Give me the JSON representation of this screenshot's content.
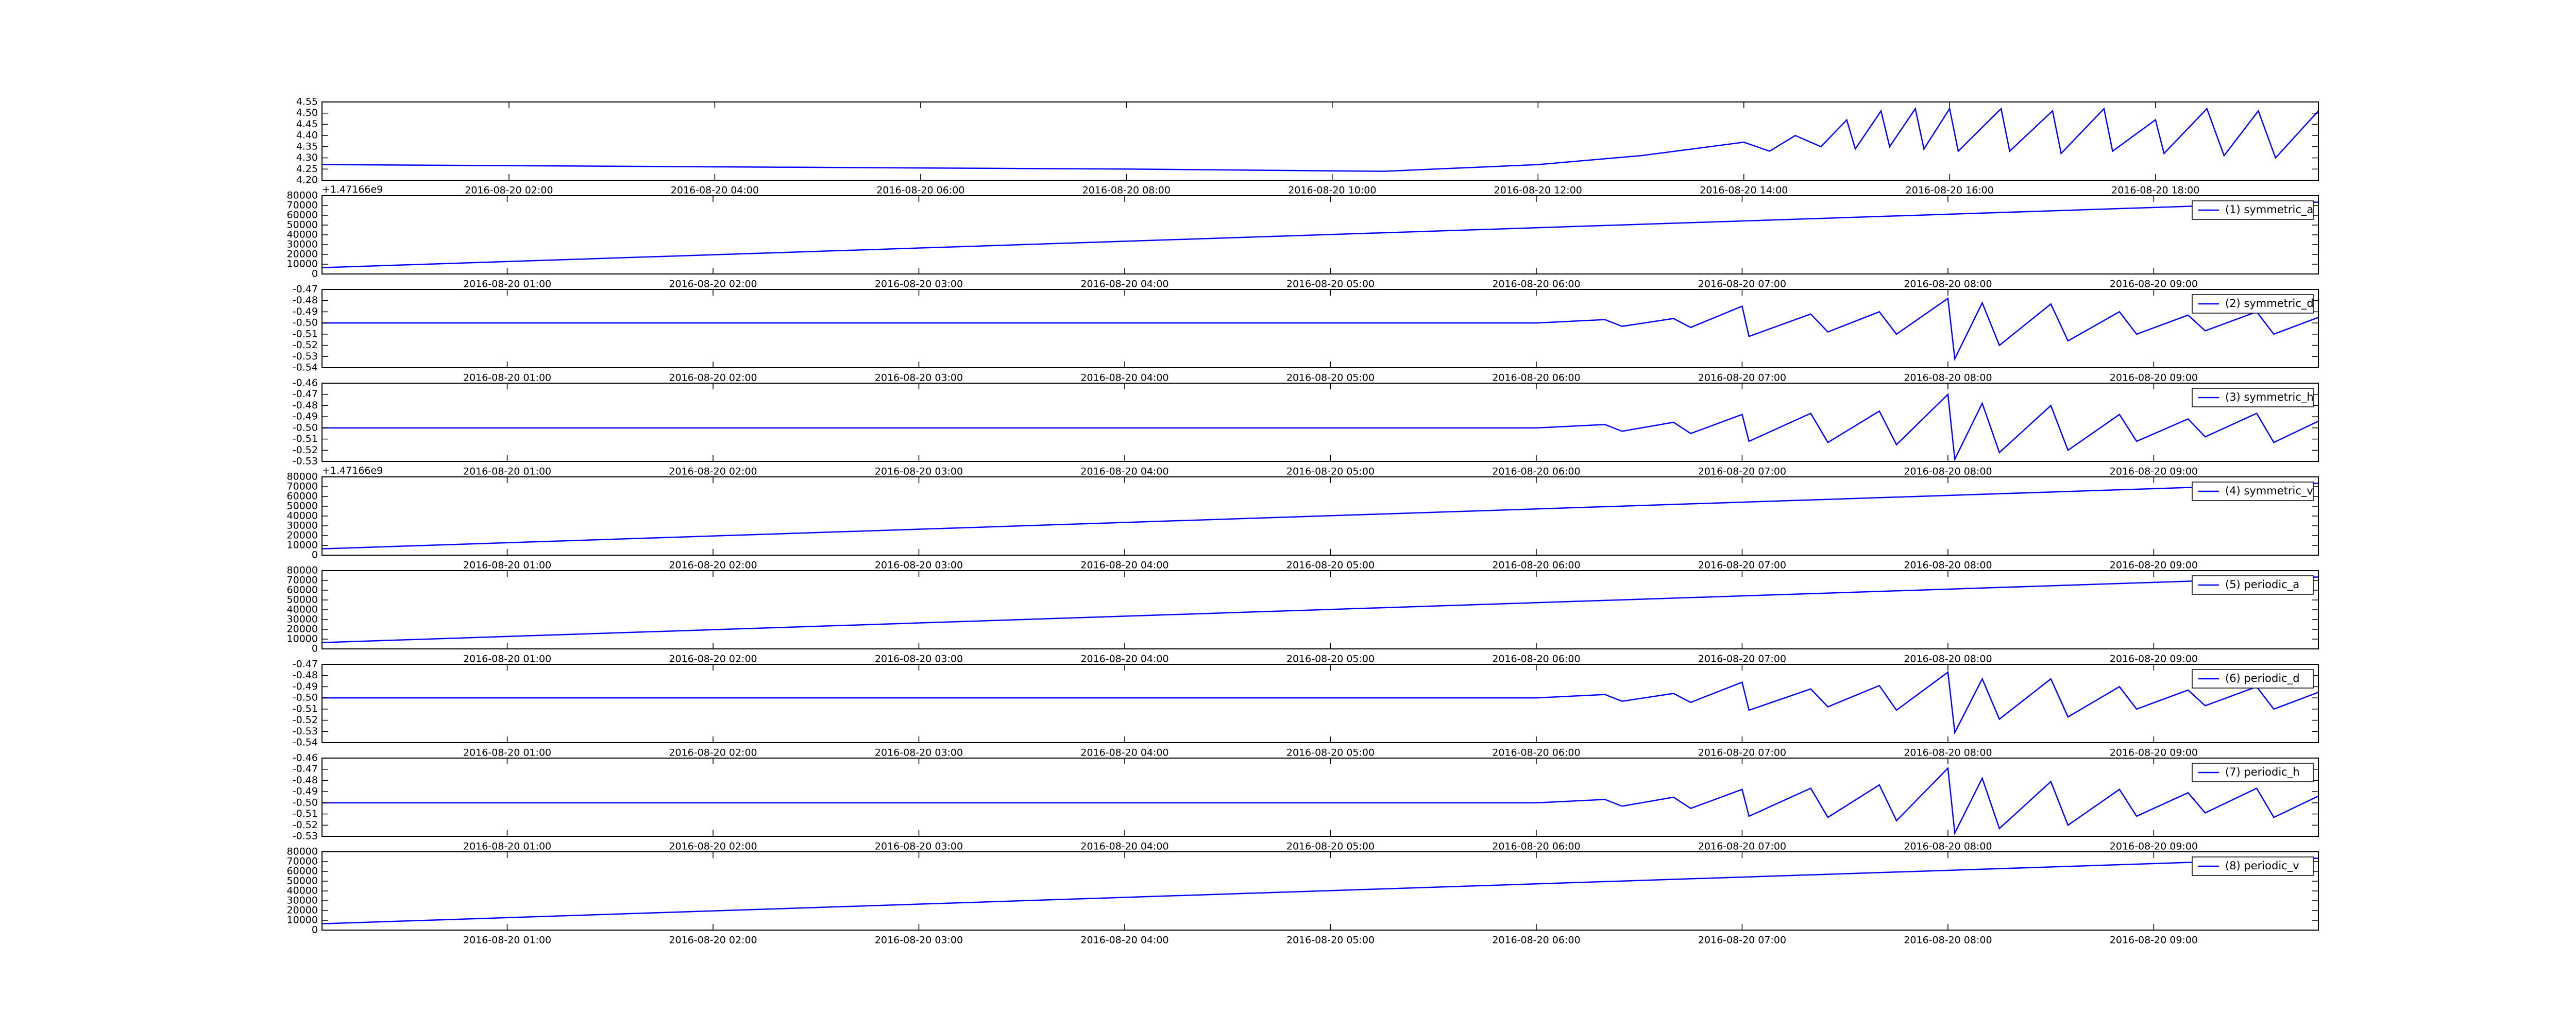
{
  "chart_data": [
    {
      "type": "line",
      "xlim": [
        "2016-08-20 00:11",
        "2016-08-20 19:35"
      ],
      "ylim": [
        4.2,
        4.55
      ],
      "yticks": [
        {
          "value": 4.2,
          "label": "4.20"
        },
        4.25,
        {
          "value": 4.3,
          "label": "4.30"
        },
        4.35,
        {
          "value": 4.4,
          "label": "4.40"
        },
        4.45,
        {
          "value": 4.5,
          "label": "4.50"
        },
        4.55
      ],
      "xticks": [
        "2016-08-20 02:00",
        "2016-08-20 04:00",
        "2016-08-20 06:00",
        "2016-08-20 08:00",
        "2016-08-20 10:00",
        "2016-08-20 12:00",
        "2016-08-20 14:00",
        "2016-08-20 16:00",
        "2016-08-20 18:00"
      ],
      "series": [
        {
          "color": "#0000ff",
          "x": [
            "2016-08-20 00:11",
            "2016-08-20 04:00",
            "2016-08-20 08:00",
            "2016-08-20 10:30",
            "2016-08-20 11:00",
            "2016-08-20 11:30",
            "2016-08-20 12:00",
            "2016-08-20 12:30",
            "2016-08-20 13:00",
            "2016-08-20 13:30",
            "2016-08-20 14:00",
            "2016-08-20 14:15",
            "2016-08-20 14:30",
            "2016-08-20 14:45",
            "2016-08-20 15:00",
            "2016-08-20 15:05",
            "2016-08-20 15:20",
            "2016-08-20 15:25",
            "2016-08-20 15:40",
            "2016-08-20 15:45",
            "2016-08-20 16:00",
            "2016-08-20 16:05",
            "2016-08-20 16:30",
            "2016-08-20 16:35",
            "2016-08-20 17:00",
            "2016-08-20 17:05",
            "2016-08-20 17:30",
            "2016-08-20 17:35",
            "2016-08-20 18:00",
            "2016-08-20 18:05",
            "2016-08-20 18:30",
            "2016-08-20 18:40",
            "2016-08-20 19:00",
            "2016-08-20 19:10",
            "2016-08-20 19:35"
          ],
          "values": [
            4.27,
            4.26,
            4.25,
            4.24,
            4.25,
            4.26,
            4.27,
            4.29,
            4.31,
            4.34,
            4.37,
            4.33,
            4.4,
            4.35,
            4.47,
            4.34,
            4.51,
            4.35,
            4.52,
            4.34,
            4.52,
            4.33,
            4.52,
            4.33,
            4.51,
            4.32,
            4.52,
            4.33,
            4.47,
            4.32,
            4.52,
            4.31,
            4.51,
            4.3,
            4.51
          ]
        }
      ]
    },
    {
      "type": "line",
      "legend": "upper right",
      "y_offset_label": "+1.47166e9",
      "xlim": [
        "2016-08-20 00:06",
        "2016-08-20 09:48"
      ],
      "ylim": [
        0,
        80000
      ],
      "yticks": [
        0,
        10000,
        20000,
        30000,
        40000,
        50000,
        60000,
        70000,
        80000
      ],
      "xticks": [
        "2016-08-20 01:00",
        "2016-08-20 02:00",
        "2016-08-20 03:00",
        "2016-08-20 04:00",
        "2016-08-20 05:00",
        "2016-08-20 06:00",
        "2016-08-20 07:00",
        "2016-08-20 08:00",
        "2016-08-20 09:00"
      ],
      "series": [
        {
          "name": "(1) symmetric_a",
          "color": "#0000ff",
          "x": [
            "2016-08-20 00:06",
            "2016-08-20 09:48"
          ],
          "values": [
            6500,
            73500
          ]
        }
      ]
    },
    {
      "type": "line",
      "legend": "upper right",
      "xlim": [
        "2016-08-20 00:06",
        "2016-08-20 09:48"
      ],
      "ylim": [
        -0.54,
        -0.47
      ],
      "yticks": [
        -0.54,
        -0.53,
        -0.52,
        -0.51,
        {
          "value": -0.5,
          "label": "-0.50"
        },
        -0.49,
        -0.48,
        -0.47
      ],
      "xticks": [
        "2016-08-20 01:00",
        "2016-08-20 02:00",
        "2016-08-20 03:00",
        "2016-08-20 04:00",
        "2016-08-20 05:00",
        "2016-08-20 06:00",
        "2016-08-20 07:00",
        "2016-08-20 08:00",
        "2016-08-20 09:00"
      ],
      "series": [
        {
          "name": "(2) symmetric_d",
          "color": "#0000ff",
          "x": [
            "2016-08-20 00:06",
            "2016-08-20 05:30",
            "2016-08-20 06:00",
            "2016-08-20 06:20",
            "2016-08-20 06:25",
            "2016-08-20 06:40",
            "2016-08-20 06:45",
            "2016-08-20 07:00",
            "2016-08-20 07:02",
            "2016-08-20 07:20",
            "2016-08-20 07:25",
            "2016-08-20 07:40",
            "2016-08-20 07:45",
            "2016-08-20 08:00",
            "2016-08-20 08:02",
            "2016-08-20 08:10",
            "2016-08-20 08:15",
            "2016-08-20 08:30",
            "2016-08-20 08:35",
            "2016-08-20 08:50",
            "2016-08-20 08:55",
            "2016-08-20 09:10",
            "2016-08-20 09:15",
            "2016-08-20 09:30",
            "2016-08-20 09:35",
            "2016-08-20 09:48"
          ],
          "values": [
            -0.5,
            -0.5,
            -0.5,
            -0.497,
            -0.503,
            -0.496,
            -0.504,
            -0.485,
            -0.512,
            -0.492,
            -0.508,
            -0.49,
            -0.51,
            -0.478,
            -0.532,
            -0.482,
            -0.52,
            -0.483,
            -0.516,
            -0.49,
            -0.51,
            -0.493,
            -0.507,
            -0.49,
            -0.51,
            -0.495
          ]
        }
      ]
    },
    {
      "type": "line",
      "legend": "upper right",
      "xlim": [
        "2016-08-20 00:06",
        "2016-08-20 09:48"
      ],
      "ylim": [
        -0.53,
        -0.46
      ],
      "yticks": [
        -0.53,
        -0.52,
        -0.51,
        {
          "value": -0.5,
          "label": "-0.50"
        },
        -0.49,
        -0.48,
        -0.47,
        -0.46
      ],
      "xticks": [
        "2016-08-20 01:00",
        "2016-08-20 02:00",
        "2016-08-20 03:00",
        "2016-08-20 04:00",
        "2016-08-20 05:00",
        "2016-08-20 06:00",
        "2016-08-20 07:00",
        "2016-08-20 08:00",
        "2016-08-20 09:00"
      ],
      "series": [
        {
          "name": "(3) symmetric_h",
          "color": "#0000ff",
          "x": [
            "2016-08-20 00:06",
            "2016-08-20 05:30",
            "2016-08-20 06:00",
            "2016-08-20 06:20",
            "2016-08-20 06:25",
            "2016-08-20 06:40",
            "2016-08-20 06:45",
            "2016-08-20 07:00",
            "2016-08-20 07:02",
            "2016-08-20 07:20",
            "2016-08-20 07:25",
            "2016-08-20 07:40",
            "2016-08-20 07:45",
            "2016-08-20 08:00",
            "2016-08-20 08:02",
            "2016-08-20 08:10",
            "2016-08-20 08:15",
            "2016-08-20 08:30",
            "2016-08-20 08:35",
            "2016-08-20 08:50",
            "2016-08-20 08:55",
            "2016-08-20 09:10",
            "2016-08-20 09:15",
            "2016-08-20 09:30",
            "2016-08-20 09:35",
            "2016-08-20 09:48"
          ],
          "values": [
            -0.5,
            -0.5,
            -0.5,
            -0.497,
            -0.503,
            -0.495,
            -0.505,
            -0.488,
            -0.512,
            -0.487,
            -0.513,
            -0.485,
            -0.515,
            -0.47,
            -0.528,
            -0.478,
            -0.522,
            -0.48,
            -0.52,
            -0.488,
            -0.512,
            -0.492,
            -0.508,
            -0.487,
            -0.513,
            -0.494
          ]
        }
      ]
    },
    {
      "type": "line",
      "legend": "upper right",
      "y_offset_label": "+1.47166e9",
      "xlim": [
        "2016-08-20 00:06",
        "2016-08-20 09:48"
      ],
      "ylim": [
        0,
        80000
      ],
      "yticks": [
        0,
        10000,
        20000,
        30000,
        40000,
        50000,
        60000,
        70000,
        80000
      ],
      "xticks": [
        "2016-08-20 01:00",
        "2016-08-20 02:00",
        "2016-08-20 03:00",
        "2016-08-20 04:00",
        "2016-08-20 05:00",
        "2016-08-20 06:00",
        "2016-08-20 07:00",
        "2016-08-20 08:00",
        "2016-08-20 09:00"
      ],
      "series": [
        {
          "name": "(4) symmetric_v",
          "color": "#0000ff",
          "x": [
            "2016-08-20 00:06",
            "2016-08-20 09:48"
          ],
          "values": [
            6500,
            73500
          ]
        }
      ]
    },
    {
      "type": "line",
      "legend": "upper right",
      "xlim": [
        "2016-08-20 00:06",
        "2016-08-20 09:48"
      ],
      "ylim": [
        0,
        80000
      ],
      "yticks": [
        0,
        10000,
        20000,
        30000,
        40000,
        50000,
        60000,
        70000,
        80000
      ],
      "xticks": [
        "2016-08-20 01:00",
        "2016-08-20 02:00",
        "2016-08-20 03:00",
        "2016-08-20 04:00",
        "2016-08-20 05:00",
        "2016-08-20 06:00",
        "2016-08-20 07:00",
        "2016-08-20 08:00",
        "2016-08-20 09:00"
      ],
      "series": [
        {
          "name": "(5) periodic_a",
          "color": "#0000ff",
          "x": [
            "2016-08-20 00:06",
            "2016-08-20 09:48"
          ],
          "values": [
            6500,
            73500
          ]
        }
      ]
    },
    {
      "type": "line",
      "legend": "upper right",
      "xlim": [
        "2016-08-20 00:06",
        "2016-08-20 09:48"
      ],
      "ylim": [
        -0.54,
        -0.47
      ],
      "yticks": [
        -0.54,
        -0.53,
        -0.52,
        -0.51,
        {
          "value": -0.5,
          "label": "-0.50"
        },
        -0.49,
        -0.48,
        -0.47
      ],
      "xticks": [
        "2016-08-20 01:00",
        "2016-08-20 02:00",
        "2016-08-20 03:00",
        "2016-08-20 04:00",
        "2016-08-20 05:00",
        "2016-08-20 06:00",
        "2016-08-20 07:00",
        "2016-08-20 08:00",
        "2016-08-20 09:00"
      ],
      "series": [
        {
          "name": "(6) periodic_d",
          "color": "#0000ff",
          "x": [
            "2016-08-20 00:06",
            "2016-08-20 05:30",
            "2016-08-20 06:00",
            "2016-08-20 06:20",
            "2016-08-20 06:25",
            "2016-08-20 06:40",
            "2016-08-20 06:45",
            "2016-08-20 07:00",
            "2016-08-20 07:02",
            "2016-08-20 07:20",
            "2016-08-20 07:25",
            "2016-08-20 07:40",
            "2016-08-20 07:45",
            "2016-08-20 08:00",
            "2016-08-20 08:02",
            "2016-08-20 08:10",
            "2016-08-20 08:15",
            "2016-08-20 08:30",
            "2016-08-20 08:35",
            "2016-08-20 08:50",
            "2016-08-20 08:55",
            "2016-08-20 09:10",
            "2016-08-20 09:15",
            "2016-08-20 09:30",
            "2016-08-20 09:35",
            "2016-08-20 09:48"
          ],
          "values": [
            -0.5,
            -0.5,
            -0.5,
            -0.497,
            -0.503,
            -0.496,
            -0.504,
            -0.486,
            -0.511,
            -0.492,
            -0.508,
            -0.489,
            -0.511,
            -0.477,
            -0.531,
            -0.483,
            -0.519,
            -0.483,
            -0.517,
            -0.49,
            -0.51,
            -0.493,
            -0.507,
            -0.49,
            -0.51,
            -0.495
          ]
        }
      ]
    },
    {
      "type": "line",
      "legend": "upper right",
      "xlim": [
        "2016-08-20 00:06",
        "2016-08-20 09:48"
      ],
      "ylim": [
        -0.53,
        -0.46
      ],
      "yticks": [
        -0.53,
        -0.52,
        -0.51,
        {
          "value": -0.5,
          "label": "-0.50"
        },
        -0.49,
        -0.48,
        -0.47,
        -0.46
      ],
      "xticks": [
        "2016-08-20 01:00",
        "2016-08-20 02:00",
        "2016-08-20 03:00",
        "2016-08-20 04:00",
        "2016-08-20 05:00",
        "2016-08-20 06:00",
        "2016-08-20 07:00",
        "2016-08-20 08:00",
        "2016-08-20 09:00"
      ],
      "series": [
        {
          "name": "(7) periodic_h",
          "color": "#0000ff",
          "x": [
            "2016-08-20 00:06",
            "2016-08-20 05:30",
            "2016-08-20 06:00",
            "2016-08-20 06:20",
            "2016-08-20 06:25",
            "2016-08-20 06:40",
            "2016-08-20 06:45",
            "2016-08-20 07:00",
            "2016-08-20 07:02",
            "2016-08-20 07:20",
            "2016-08-20 07:25",
            "2016-08-20 07:40",
            "2016-08-20 07:45",
            "2016-08-20 08:00",
            "2016-08-20 08:02",
            "2016-08-20 08:10",
            "2016-08-20 08:15",
            "2016-08-20 08:30",
            "2016-08-20 08:35",
            "2016-08-20 08:50",
            "2016-08-20 08:55",
            "2016-08-20 09:10",
            "2016-08-20 09:15",
            "2016-08-20 09:30",
            "2016-08-20 09:35",
            "2016-08-20 09:48"
          ],
          "values": [
            -0.5,
            -0.5,
            -0.5,
            -0.497,
            -0.503,
            -0.495,
            -0.505,
            -0.488,
            -0.512,
            -0.487,
            -0.513,
            -0.484,
            -0.516,
            -0.469,
            -0.527,
            -0.478,
            -0.523,
            -0.481,
            -0.52,
            -0.488,
            -0.512,
            -0.491,
            -0.509,
            -0.487,
            -0.513,
            -0.494
          ]
        }
      ]
    },
    {
      "type": "line",
      "legend": "upper right",
      "xlim": [
        "2016-08-20 00:06",
        "2016-08-20 09:48"
      ],
      "ylim": [
        0,
        80000
      ],
      "yticks": [
        0,
        10000,
        20000,
        30000,
        40000,
        50000,
        60000,
        70000,
        80000
      ],
      "xticks": [
        "2016-08-20 01:00",
        "2016-08-20 02:00",
        "2016-08-20 03:00",
        "2016-08-20 04:00",
        "2016-08-20 05:00",
        "2016-08-20 06:00",
        "2016-08-20 07:00",
        "2016-08-20 08:00",
        "2016-08-20 09:00"
      ],
      "series": [
        {
          "name": "(8) periodic_v",
          "color": "#0000ff",
          "x": [
            "2016-08-20 00:06",
            "2016-08-20 09:48"
          ],
          "values": [
            6500,
            73500
          ]
        }
      ]
    }
  ]
}
